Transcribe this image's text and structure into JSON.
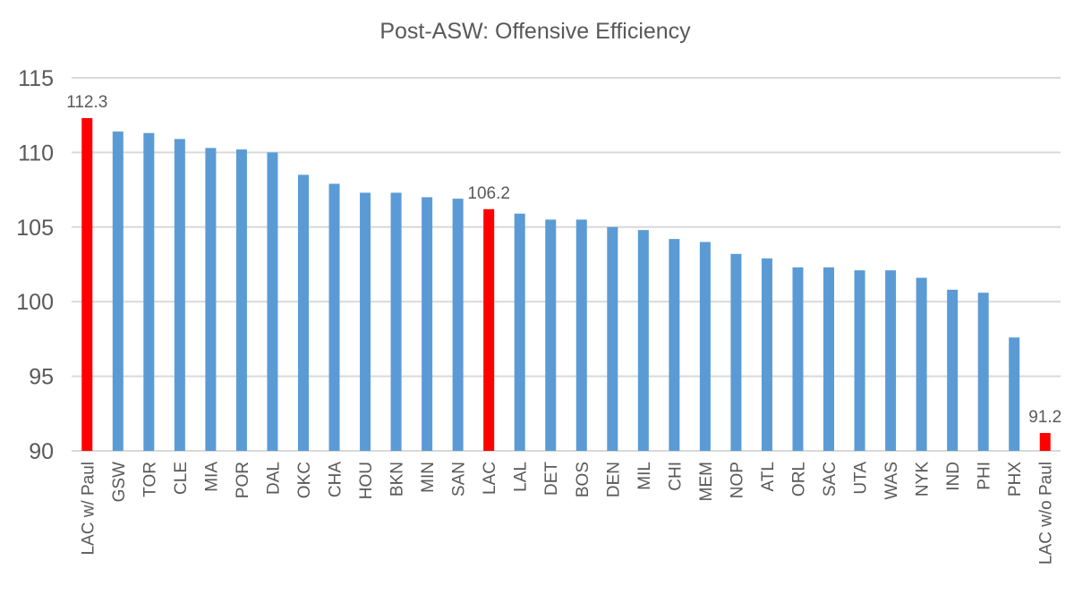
{
  "chart_data": {
    "type": "bar",
    "title": "Post-ASW: Offensive Efficiency",
    "xlabel": "",
    "ylabel": "",
    "ylim": [
      90,
      115
    ],
    "yticks": [
      90,
      95,
      100,
      105,
      110,
      115
    ],
    "grid": true,
    "legend": "none",
    "colors": {
      "default": "#5B9BD5",
      "highlight": "#FF0000",
      "grid": "#D9D9D9",
      "text": "#595959"
    },
    "categories": [
      "LAC w/ Paul",
      "GSW",
      "TOR",
      "CLE",
      "MIA",
      "POR",
      "DAL",
      "OKC",
      "CHA",
      "HOU",
      "BKN",
      "MIN",
      "SAN",
      "LAC",
      "LAL",
      "DET",
      "BOS",
      "DEN",
      "MIL",
      "CHI",
      "MEM",
      "NOP",
      "ATL",
      "ORL",
      "SAC",
      "UTA",
      "WAS",
      "NYK",
      "IND",
      "PHI",
      "PHX",
      "LAC w/o Paul"
    ],
    "values": [
      112.3,
      111.4,
      111.3,
      110.9,
      110.3,
      110.2,
      110.0,
      108.5,
      107.9,
      107.3,
      107.3,
      107.0,
      106.9,
      106.2,
      105.9,
      105.5,
      105.5,
      105.0,
      104.8,
      104.2,
      104.0,
      103.2,
      102.9,
      102.3,
      102.3,
      102.1,
      102.1,
      101.6,
      100.8,
      100.6,
      97.6,
      91.2
    ],
    "highlighted": [
      "LAC w/ Paul",
      "LAC",
      "LAC w/o Paul"
    ],
    "data_labels": [
      {
        "category": "LAC w/ Paul",
        "text": "112.3"
      },
      {
        "category": "LAC",
        "text": "106.2"
      },
      {
        "category": "LAC w/o Paul",
        "text": "91.2"
      }
    ]
  }
}
